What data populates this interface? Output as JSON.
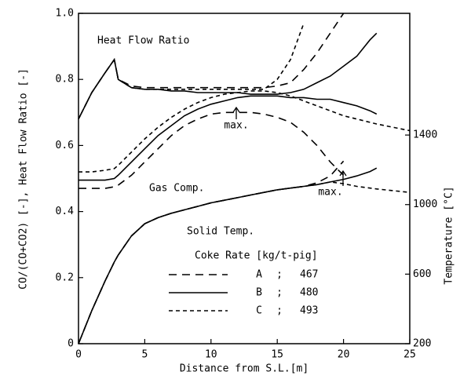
{
  "chart_data": {
    "type": "line",
    "x_label": "Distance from S.L.[m]",
    "y_label": "CO/(CO+CO2) [-], Heat Flow Ratio [-]",
    "y2_label": "Temperature [°C]",
    "xlim": [
      0,
      25
    ],
    "xticks": [
      0,
      5,
      10,
      15,
      20,
      25
    ],
    "ylim": [
      0,
      1
    ],
    "yticks": [
      0,
      0.2,
      0.4,
      0.6,
      0.8,
      {
        "value": 1,
        "label": "1.0"
      }
    ],
    "y2lim": [
      200,
      2100
    ],
    "y2ticks": [
      200,
      600,
      1000,
      1400
    ],
    "color": "#000000",
    "x": [
      0,
      1,
      2,
      2.7,
      3,
      4,
      5,
      6,
      7,
      8,
      9,
      10,
      11,
      12,
      13,
      14,
      15,
      16,
      17,
      18,
      19,
      20,
      21,
      22,
      22.5,
      25
    ],
    "legend": {
      "title": "Coke Rate [kg/t-pig]",
      "entries": [
        {
          "name": "A",
          "rate": 467,
          "dash": "10,7"
        },
        {
          "name": "B",
          "rate": 480,
          "dash": "none"
        },
        {
          "name": "C",
          "rate": 493,
          "dash": "5,4"
        }
      ]
    },
    "groups": [
      {
        "label": "Heat Flow Ratio",
        "axis": "y",
        "series": [
          {
            "name": "A",
            "values": [
              0.68,
              0.76,
              0.82,
              0.86,
              0.8,
              0.78,
              0.775,
              0.775,
              0.775,
              0.775,
              0.775,
              0.775,
              0.775,
              0.775,
              0.775,
              0.775,
              0.78,
              0.79,
              0.83,
              0.88,
              0.94,
              1.0,
              null,
              null,
              null,
              null
            ]
          },
          {
            "name": "B",
            "values": [
              0.68,
              0.76,
              0.82,
              0.86,
              0.8,
              0.775,
              0.77,
              0.77,
              0.765,
              0.765,
              0.76,
              0.76,
              0.76,
              0.76,
              0.755,
              0.755,
              0.755,
              0.76,
              0.77,
              0.79,
              0.81,
              0.84,
              0.87,
              0.92,
              0.94,
              null
            ]
          },
          {
            "name": "C",
            "values": [
              0.68,
              0.76,
              0.82,
              0.86,
              0.8,
              0.775,
              0.77,
              0.77,
              0.77,
              0.77,
              0.77,
              0.77,
              0.77,
              0.77,
              0.77,
              0.77,
              0.8,
              0.86,
              0.97,
              null,
              null,
              null,
              null,
              null,
              null,
              null
            ]
          }
        ]
      },
      {
        "label": "Gas Comp.",
        "axis": "y",
        "series": [
          {
            "name": "A",
            "values": [
              0.47,
              0.47,
              0.47,
              0.475,
              0.48,
              0.51,
              0.55,
              0.59,
              0.63,
              0.66,
              0.68,
              0.695,
              0.7,
              0.7,
              0.7,
              0.695,
              0.685,
              0.67,
              0.64,
              0.6,
              0.55,
              0.51,
              null,
              null,
              null,
              null
            ]
          },
          {
            "name": "B",
            "values": [
              0.495,
              0.495,
              0.495,
              0.5,
              0.51,
              0.55,
              0.59,
              0.63,
              0.66,
              0.69,
              0.71,
              0.725,
              0.735,
              0.745,
              0.75,
              0.75,
              0.75,
              0.745,
              0.745,
              0.74,
              0.74,
              0.73,
              0.72,
              0.705,
              0.695,
              null
            ]
          },
          {
            "name": "C",
            "values": [
              0.52,
              0.52,
              0.525,
              0.53,
              0.54,
              0.58,
              0.62,
              0.655,
              0.685,
              0.71,
              0.73,
              0.745,
              0.755,
              0.76,
              0.765,
              0.765,
              0.76,
              0.75,
              0.735,
              0.72,
              0.705,
              0.69,
              0.68,
              0.67,
              0.665,
              0.645
            ]
          }
        ]
      },
      {
        "label": "Solid Temp.",
        "axis": "y2",
        "series": [
          {
            "name": "A",
            "values": [
              200,
              390,
              560,
              670,
              710,
              820,
              890,
              925,
              950,
              970,
              990,
              1010,
              1025,
              1040,
              1055,
              1070,
              1085,
              1095,
              1105,
              1125,
              1165,
              1250,
              null,
              null,
              null,
              null
            ]
          },
          {
            "name": "B",
            "values": [
              200,
              390,
              560,
              670,
              710,
              820,
              890,
              925,
              950,
              970,
              990,
              1010,
              1025,
              1040,
              1055,
              1070,
              1085,
              1095,
              1105,
              1115,
              1130,
              1145,
              1165,
              1190,
              1210,
              null
            ]
          },
          {
            "name": "C",
            "values": [
              200,
              390,
              560,
              670,
              710,
              820,
              890,
              925,
              950,
              970,
              990,
              1010,
              1025,
              1040,
              1055,
              1070,
              1085,
              1095,
              1105,
              1115,
              1130,
              1120,
              1105,
              1095,
              1090,
              1070
            ]
          }
        ]
      }
    ],
    "annotations": [
      "max.",
      "max."
    ]
  }
}
